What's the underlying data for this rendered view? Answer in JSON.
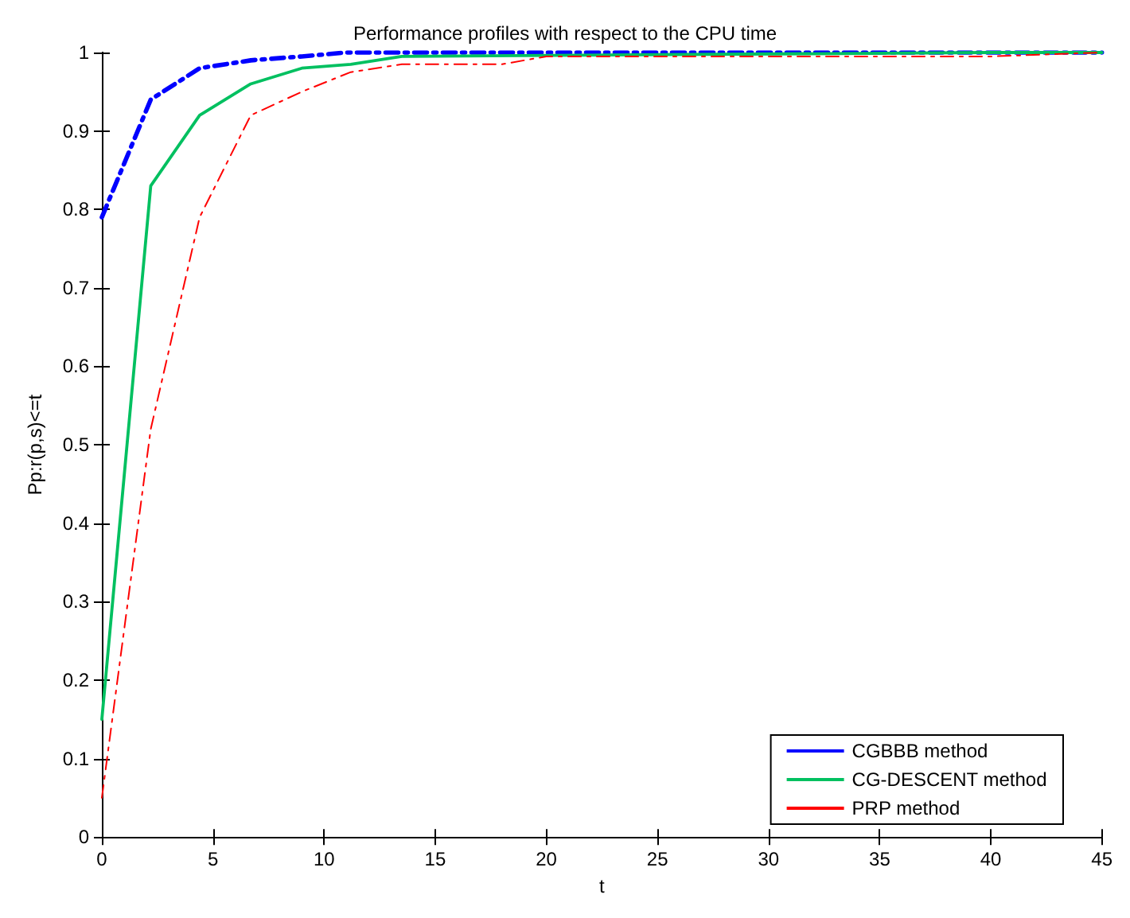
{
  "chart_data": {
    "type": "line",
    "title": "Performance profiles with respect to the CPU time",
    "xlabel": "t",
    "ylabel": "Pp:r(p,s)<=t",
    "xlim": [
      0,
      45
    ],
    "ylim": [
      0,
      1
    ],
    "xticks": [
      0,
      5,
      10,
      15,
      20,
      25,
      30,
      35,
      40,
      45
    ],
    "yticks": [
      0,
      0.1,
      0.2,
      0.3,
      0.4,
      0.5,
      0.6,
      0.7,
      0.8,
      0.9,
      1
    ],
    "grid": false,
    "legend": "bottom right",
    "marker": "none",
    "series": [
      {
        "name": "CGBBB method",
        "color": "#0000ff",
        "line_style": "dashed",
        "x": [
          0,
          2.2,
          4.4,
          6.7,
          9,
          11,
          45
        ],
        "values": [
          0.79,
          0.94,
          0.98,
          0.99,
          0.995,
          1,
          1
        ]
      },
      {
        "name": "CG-DESCENT method",
        "color": "#00c060",
        "line_style": "solid",
        "x": [
          0,
          2.2,
          4.4,
          6.7,
          9,
          11.2,
          13.5,
          40,
          45
        ],
        "values": [
          0.15,
          0.83,
          0.92,
          0.96,
          0.98,
          0.985,
          0.995,
          1,
          1
        ]
      },
      {
        "name": "PRP method",
        "color": "#ff0000",
        "line_style": "dashed",
        "x": [
          0,
          2.2,
          4.4,
          6.7,
          9,
          11.2,
          13.5,
          18,
          20,
          40,
          45
        ],
        "values": [
          0.05,
          0.52,
          0.79,
          0.92,
          0.95,
          0.975,
          0.985,
          0.985,
          0.995,
          0.995,
          1
        ]
      }
    ]
  }
}
